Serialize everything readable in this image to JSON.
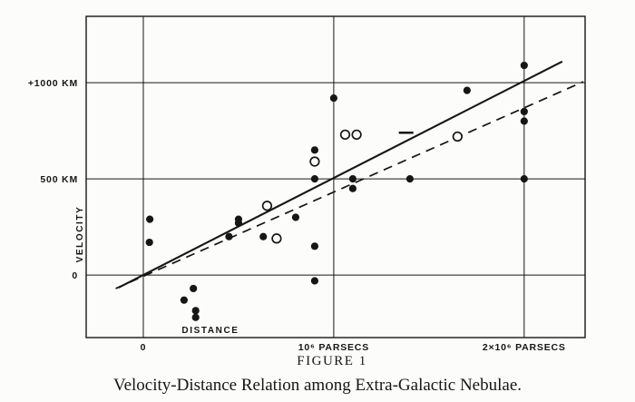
{
  "chart_data": {
    "type": "scatter",
    "title": "FIGURE 1",
    "caption": "Velocity-Distance Relation among Extra-Galactic Nebulae.",
    "xlabel": "DISTANCE",
    "ylabel": "VELOCITY",
    "x_unit": "10^6 parsecs",
    "y_unit": "km/s",
    "xlim": [
      -0.3,
      2.32
    ],
    "ylim": [
      -325,
      1345
    ],
    "grid": true,
    "x_ticks": [
      {
        "value": 0,
        "label": "0"
      },
      {
        "value": 1,
        "label": "10⁶ PARSECS"
      },
      {
        "value": 2,
        "label": "2×10⁶ PARSECS"
      }
    ],
    "y_ticks": [
      {
        "value": 0,
        "label": "0"
      },
      {
        "value": 500,
        "label": "500 KM"
      },
      {
        "value": 1000,
        "label": "+1000 KM"
      }
    ],
    "series": [
      {
        "name": "individual-nebulae",
        "marker": "filled-circle",
        "points": [
          [
            0.032,
            170
          ],
          [
            0.034,
            290
          ],
          [
            0.214,
            -130
          ],
          [
            0.263,
            -70
          ],
          [
            0.275,
            -185
          ],
          [
            0.275,
            -220
          ],
          [
            0.45,
            200
          ],
          [
            0.5,
            290
          ],
          [
            0.5,
            270
          ],
          [
            0.63,
            200
          ],
          [
            0.8,
            300
          ],
          [
            0.9,
            -30
          ],
          [
            0.9,
            650
          ],
          [
            0.9,
            150
          ],
          [
            0.9,
            500
          ],
          [
            1.0,
            920
          ],
          [
            1.1,
            450
          ],
          [
            1.1,
            500
          ],
          [
            1.4,
            500
          ],
          [
            1.7,
            960
          ],
          [
            2.0,
            500
          ],
          [
            2.0,
            850
          ],
          [
            2.0,
            800
          ],
          [
            2.0,
            1090
          ]
        ]
      },
      {
        "name": "nebulae-groups",
        "marker": "open-circle",
        "points": [
          [
            0.65,
            360
          ],
          [
            0.7,
            190
          ],
          [
            0.9,
            590
          ],
          [
            1.06,
            730
          ],
          [
            1.12,
            730
          ],
          [
            1.65,
            720
          ]
        ]
      },
      {
        "name": "mean-of-22-nebulae",
        "marker": "cross",
        "points": [
          [
            1.38,
            740
          ]
        ]
      }
    ],
    "lines": [
      {
        "name": "solution-individual",
        "style": "solid",
        "from": [
          -0.13,
          -65
        ],
        "to": [
          2.2,
          1110
        ]
      },
      {
        "name": "solution-groups",
        "style": "dashed",
        "from": [
          -0.145,
          -70
        ],
        "to": [
          2.31,
          1005
        ]
      }
    ],
    "ink_color": "#161616",
    "paper_color": "#fcfcfa"
  }
}
